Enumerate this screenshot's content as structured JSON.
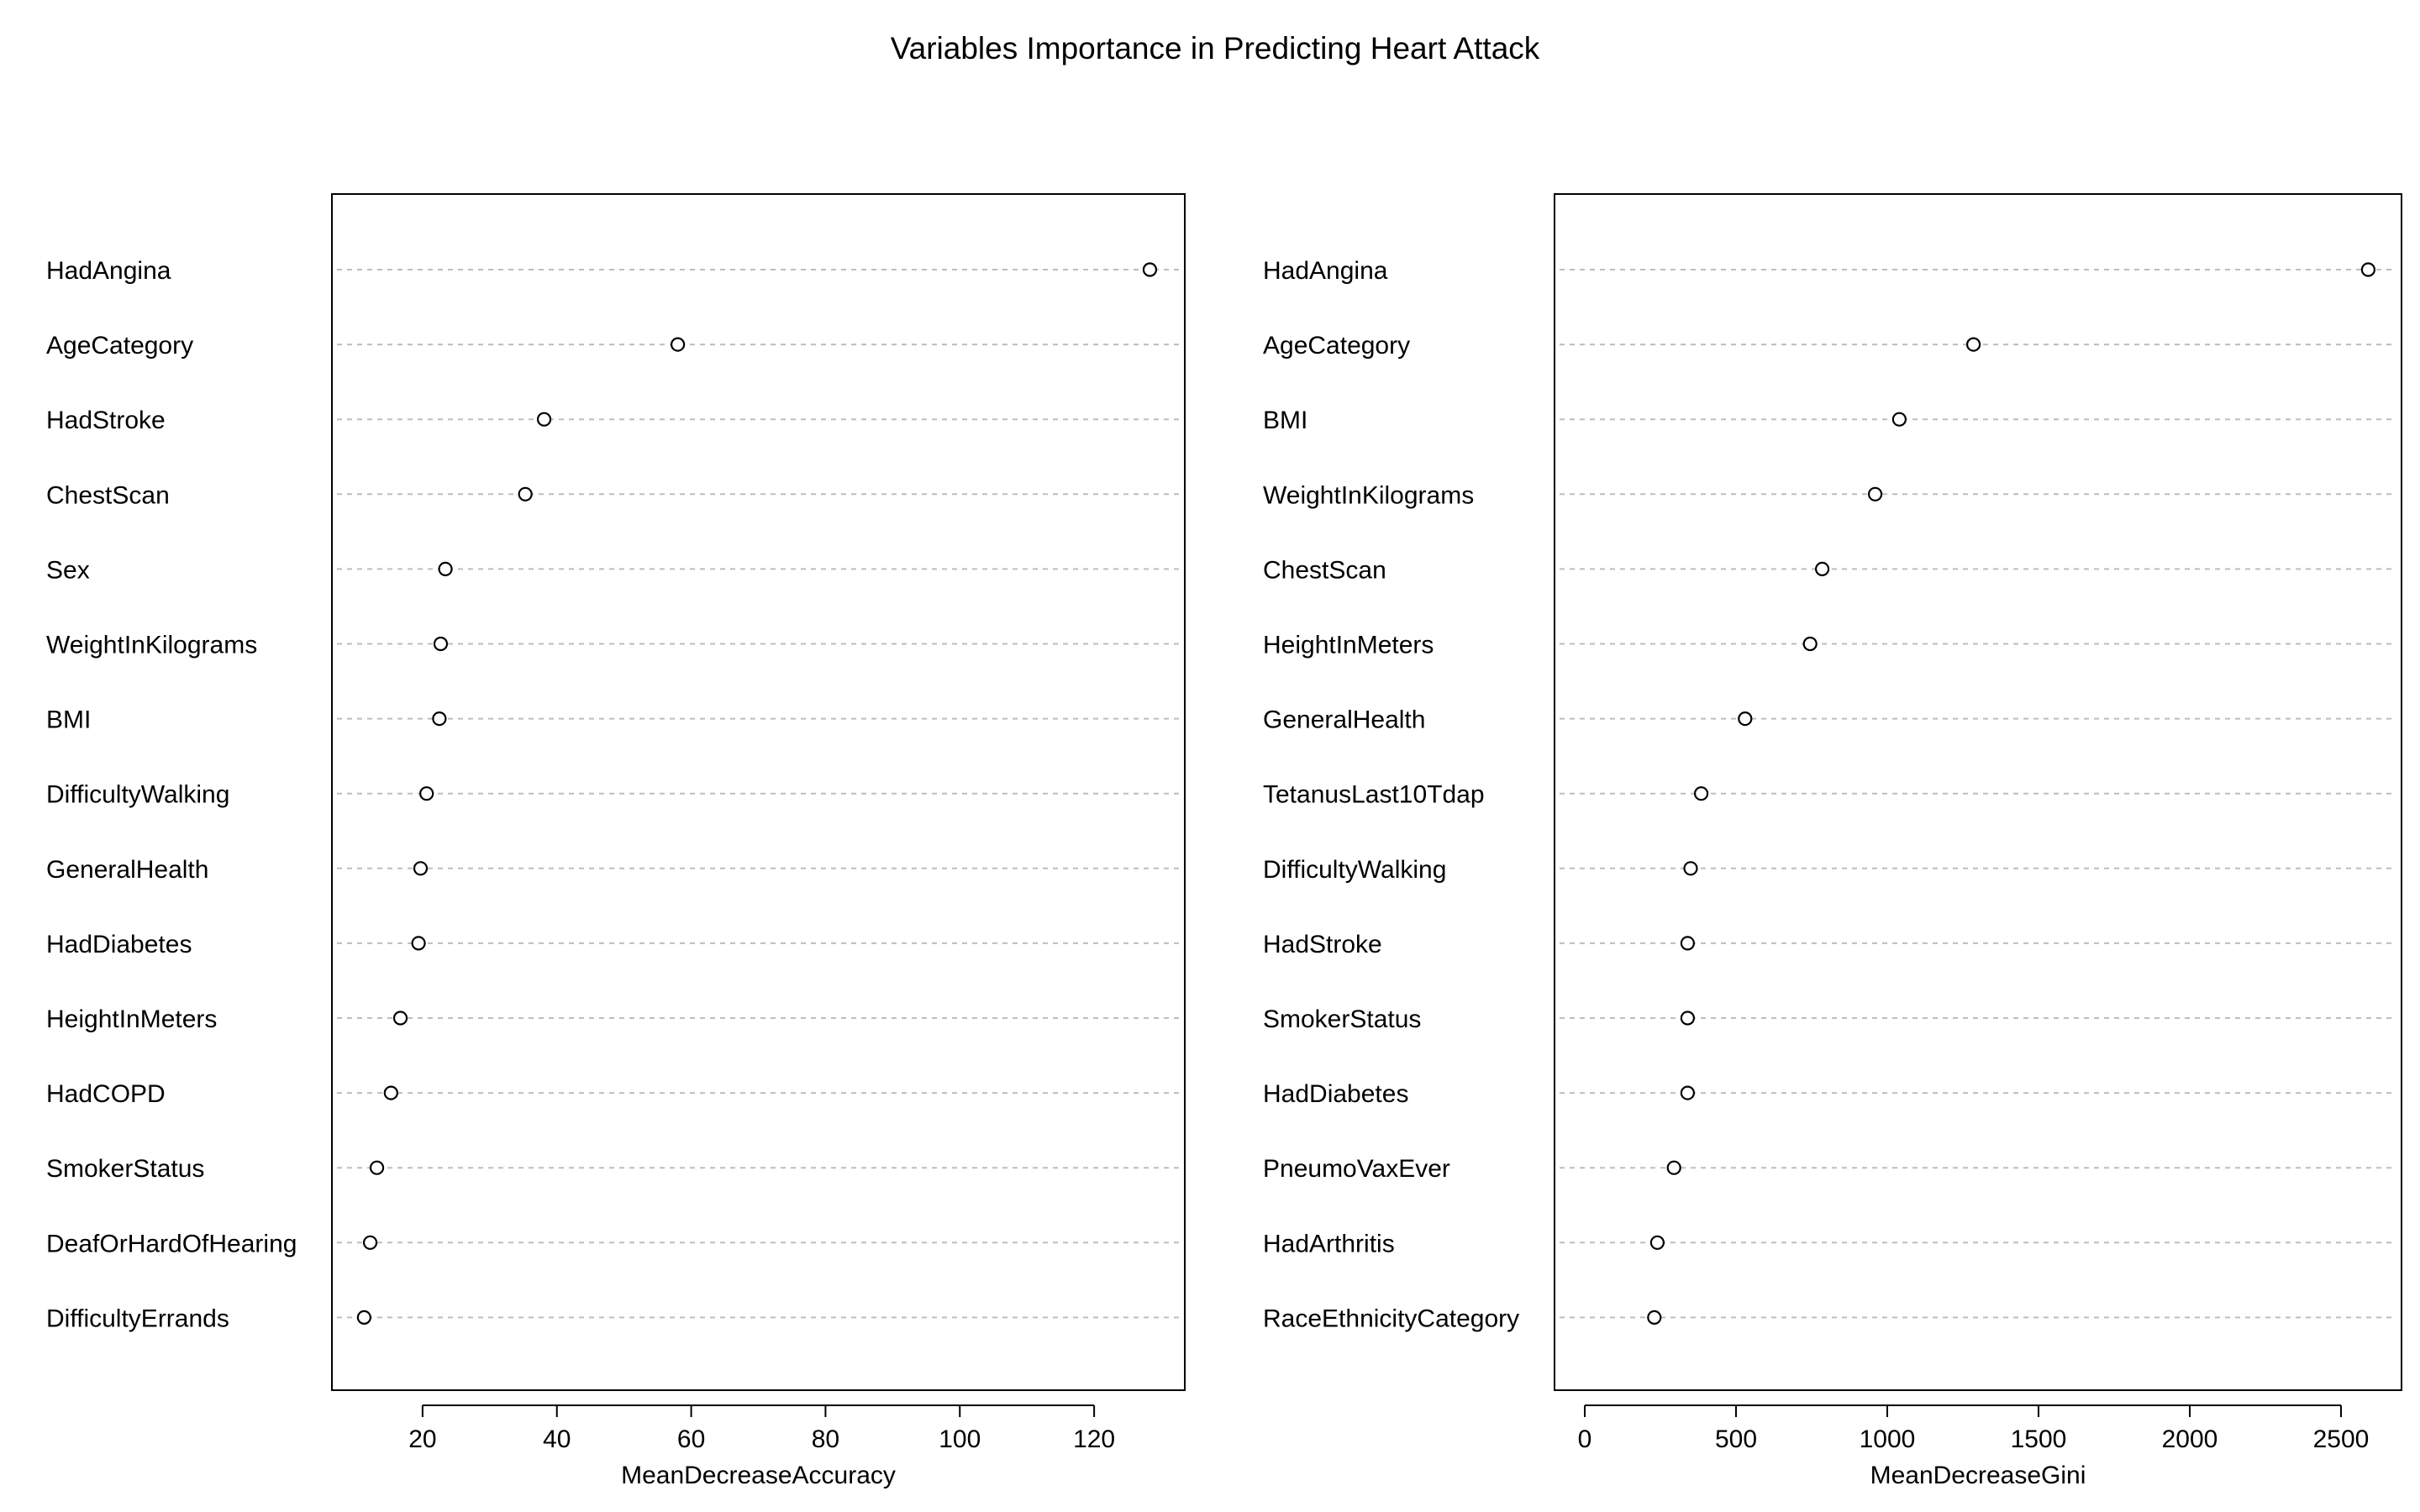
{
  "title": "Variables Importance in Predicting Heart Attack",
  "chart_data": [
    {
      "type": "scatter",
      "subtype": "dot-plot",
      "xlabel": "MeanDecreaseAccuracy",
      "ylabel": "",
      "xticks": [
        20,
        40,
        60,
        80,
        100,
        120
      ],
      "xlim": [
        6.5,
        133.5
      ],
      "grid": false,
      "categories": [
        "HadAngina",
        "AgeCategory",
        "HadStroke",
        "ChestScan",
        "Sex",
        "WeightInKilograms",
        "BMI",
        "DifficultyWalking",
        "GeneralHealth",
        "HadDiabetes",
        "HeightInMeters",
        "HadCOPD",
        "SmokerStatus",
        "DeafOrHardOfHearing",
        "DifficultyErrands"
      ],
      "values": [
        128.3,
        58.0,
        38.1,
        35.3,
        23.4,
        22.7,
        22.5,
        20.6,
        19.7,
        19.4,
        16.7,
        15.3,
        13.2,
        12.2,
        11.3
      ]
    },
    {
      "type": "scatter",
      "subtype": "dot-plot",
      "xlabel": "MeanDecreaseGini",
      "ylabel": "",
      "xticks": [
        0,
        500,
        1000,
        1500,
        2000,
        2500
      ],
      "xlim": [
        -100,
        2700
      ],
      "grid": false,
      "categories": [
        "HadAngina",
        "AgeCategory",
        "BMI",
        "WeightInKilograms",
        "ChestScan",
        "HeightInMeters",
        "GeneralHealth",
        "TetanusLast10Tdap",
        "DifficultyWalking",
        "HadStroke",
        "SmokerStatus",
        "HadDiabetes",
        "PneumoVaxEver",
        "HadArthritis",
        "RaceEthnicityCategory"
      ],
      "values": [
        2590,
        1285,
        1040,
        960,
        785,
        745,
        530,
        385,
        350,
        340,
        340,
        340,
        295,
        240,
        230
      ]
    }
  ]
}
